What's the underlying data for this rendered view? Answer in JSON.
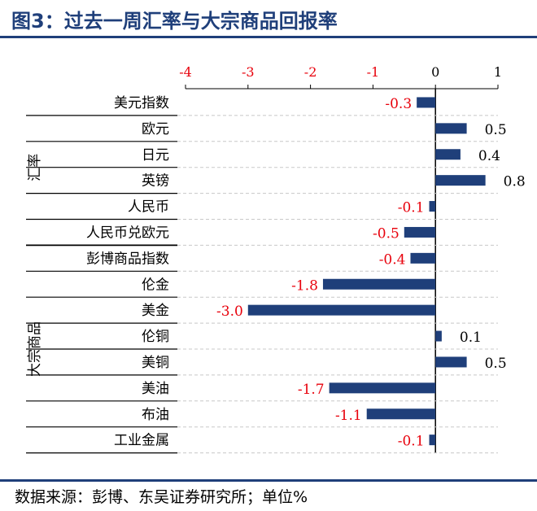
{
  "title": "图3：过去一周汇率与大宗商品回报率",
  "source": "数据来源：彭博、东吴证券研究所；单位%",
  "colors": {
    "bar": "#1f3f7a",
    "negative_label": "#e8000b",
    "positive_label": "#000000",
    "title": "#1f3f7a"
  },
  "chart_data": {
    "type": "bar",
    "orientation": "horizontal",
    "x_ticks": [
      -4,
      -3,
      -2,
      -1,
      0,
      1
    ],
    "x_tick_labels": [
      "-4",
      "-3",
      "-2",
      "-1",
      "0",
      "1"
    ],
    "xlim": [
      -4,
      1
    ],
    "axis_position": "top",
    "grid": "horizontal dashed",
    "groups": [
      {
        "name": "汇率",
        "categories": [
          "美元指数",
          "欧元",
          "日元",
          "英镑",
          "人民币",
          "人民币兑欧元"
        ]
      },
      {
        "name": "大宗商品",
        "categories": [
          "彭博商品指数",
          "伦金",
          "美金",
          "伦铜",
          "美铜",
          "美油",
          "布油",
          "工业金属"
        ]
      }
    ],
    "categories": [
      "美元指数",
      "欧元",
      "日元",
      "英镑",
      "人民币",
      "人民币兑欧元",
      "彭博商品指数",
      "伦金",
      "美金",
      "伦铜",
      "美铜",
      "美油",
      "布油",
      "工业金属"
    ],
    "values": [
      -0.3,
      0.5,
      0.4,
      0.8,
      -0.1,
      -0.5,
      -0.4,
      -1.8,
      -3.0,
      0.1,
      0.5,
      -1.7,
      -1.1,
      -0.1
    ],
    "value_labels": [
      "-0.3",
      "0.5",
      "0.4",
      "0.8",
      "-0.1",
      "-0.5",
      "-0.4",
      "-1.8",
      "-3.0",
      "0.1",
      "0.5",
      "-1.7",
      "-1.1",
      "-0.1"
    ]
  }
}
